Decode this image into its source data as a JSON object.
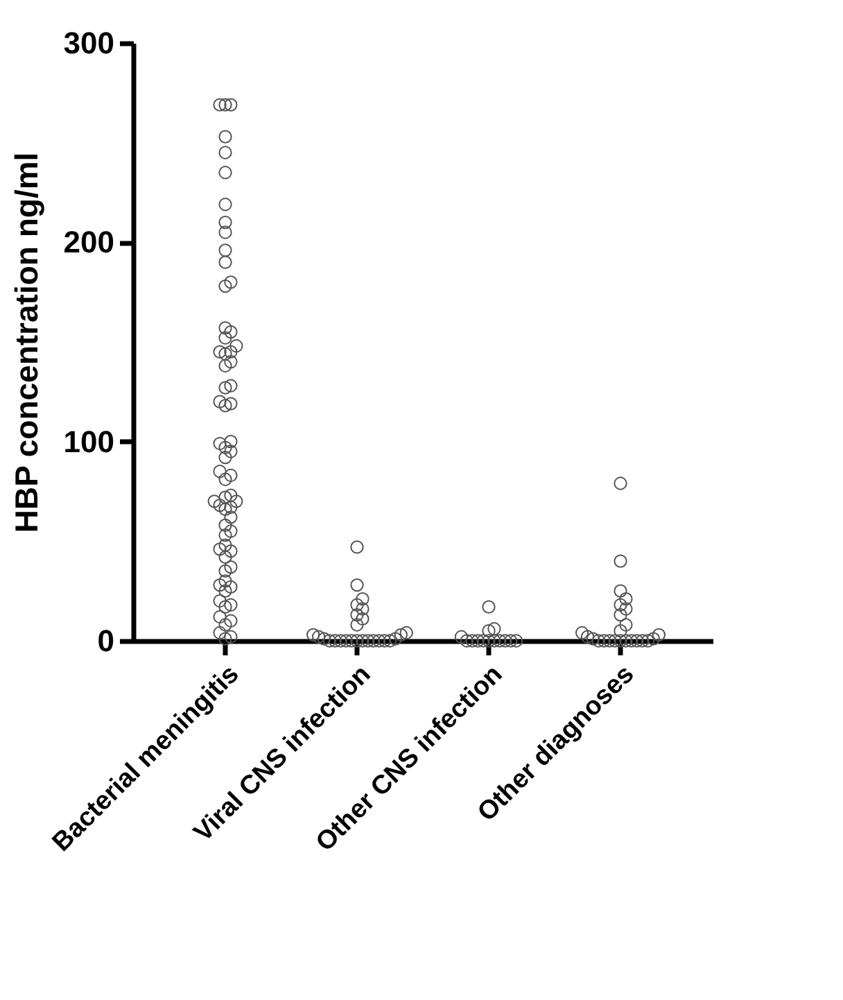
{
  "chart_data": {
    "type": "scatter",
    "ylabel": "HBP concentration ng/ml",
    "categories": [
      "Bacterial meningitis",
      "Viral CNS infection",
      "Other CNS infection",
      "Other diagnoses"
    ],
    "ylim": [
      0,
      300
    ],
    "yticks": [
      0,
      100,
      200,
      300
    ],
    "grid": false,
    "legend": false,
    "marker": "circle",
    "series": [
      {
        "color": "#555555",
        "x": [
          "Bacterial meningitis",
          "Bacterial meningitis",
          "Bacterial meningitis",
          "Bacterial meningitis",
          "Bacterial meningitis",
          "Bacterial meningitis",
          "Bacterial meningitis",
          "Bacterial meningitis",
          "Bacterial meningitis",
          "Bacterial meningitis",
          "Bacterial meningitis",
          "Bacterial meningitis",
          "Bacterial meningitis",
          "Bacterial meningitis",
          "Bacterial meningitis",
          "Bacterial meningitis",
          "Bacterial meningitis",
          "Bacterial meningitis",
          "Bacterial meningitis",
          "Bacterial meningitis",
          "Bacterial meningitis",
          "Bacterial meningitis",
          "Bacterial meningitis",
          "Bacterial meningitis",
          "Bacterial meningitis",
          "Bacterial meningitis",
          "Bacterial meningitis",
          "Bacterial meningitis",
          "Bacterial meningitis",
          "Bacterial meningitis",
          "Bacterial meningitis",
          "Bacterial meningitis",
          "Bacterial meningitis",
          "Bacterial meningitis",
          "Bacterial meningitis",
          "Bacterial meningitis",
          "Bacterial meningitis",
          "Bacterial meningitis",
          "Bacterial meningitis",
          "Bacterial meningitis",
          "Bacterial meningitis",
          "Bacterial meningitis",
          "Bacterial meningitis",
          "Bacterial meningitis",
          "Bacterial meningitis",
          "Bacterial meningitis",
          "Bacterial meningitis",
          "Bacterial meningitis",
          "Bacterial meningitis",
          "Bacterial meningitis",
          "Bacterial meningitis",
          "Bacterial meningitis",
          "Bacterial meningitis",
          "Bacterial meningitis",
          "Bacterial meningitis",
          "Bacterial meningitis",
          "Bacterial meningitis",
          "Bacterial meningitis",
          "Bacterial meningitis",
          "Bacterial meningitis",
          "Bacterial meningitis",
          "Bacterial meningitis",
          "Bacterial meningitis",
          "Bacterial meningitis",
          "Bacterial meningitis"
        ],
        "values": [
          269,
          269,
          269,
          253,
          245,
          235,
          219,
          210,
          205,
          196,
          190,
          180,
          178,
          157,
          155,
          152,
          148,
          145,
          145,
          144,
          140,
          138,
          128,
          127,
          120,
          119,
          118,
          100,
          99,
          97,
          95,
          92,
          85,
          83,
          81,
          73,
          72,
          70,
          70,
          68,
          67,
          66,
          62,
          58,
          55,
          53,
          48,
          46,
          45,
          42,
          37,
          35,
          30,
          28,
          27,
          25,
          20,
          18,
          17,
          12,
          10,
          8,
          4,
          2,
          1
        ]
      },
      {
        "color": "#555555",
        "x": [
          "Viral CNS infection",
          "Viral CNS infection",
          "Viral CNS infection",
          "Viral CNS infection",
          "Viral CNS infection",
          "Viral CNS infection",
          "Viral CNS infection",
          "Viral CNS infection",
          "Viral CNS infection",
          "Viral CNS infection",
          "Viral CNS infection",
          "Viral CNS infection",
          "Viral CNS infection",
          "Viral CNS infection",
          "Viral CNS infection",
          "Viral CNS infection",
          "Viral CNS infection",
          "Viral CNS infection",
          "Viral CNS infection",
          "Viral CNS infection",
          "Viral CNS infection",
          "Viral CNS infection",
          "Viral CNS infection",
          "Viral CNS infection",
          "Viral CNS infection",
          "Viral CNS infection"
        ],
        "values": [
          47,
          28,
          21,
          18,
          16,
          13,
          11,
          8,
          4,
          3,
          3,
          2,
          1,
          1,
          0,
          0,
          0,
          0,
          0,
          0,
          0,
          0,
          0,
          0,
          0,
          0
        ]
      },
      {
        "color": "#555555",
        "x": [
          "Other CNS infection",
          "Other CNS infection",
          "Other CNS infection",
          "Other CNS infection",
          "Other CNS infection",
          "Other CNS infection",
          "Other CNS infection",
          "Other CNS infection",
          "Other CNS infection",
          "Other CNS infection",
          "Other CNS infection",
          "Other CNS infection",
          "Other CNS infection",
          "Other CNS infection"
        ],
        "values": [
          17,
          6,
          5,
          2,
          0,
          0,
          0,
          0,
          0,
          0,
          0,
          0,
          0,
          0
        ]
      },
      {
        "color": "#555555",
        "x": [
          "Other diagnoses",
          "Other diagnoses",
          "Other diagnoses",
          "Other diagnoses",
          "Other diagnoses",
          "Other diagnoses",
          "Other diagnoses",
          "Other diagnoses",
          "Other diagnoses",
          "Other diagnoses",
          "Other diagnoses",
          "Other diagnoses",
          "Other diagnoses",
          "Other diagnoses",
          "Other diagnoses",
          "Other diagnoses",
          "Other diagnoses",
          "Other diagnoses",
          "Other diagnoses",
          "Other diagnoses",
          "Other diagnoses",
          "Other diagnoses",
          "Other diagnoses",
          "Other diagnoses"
        ],
        "values": [
          79,
          40,
          25,
          21,
          18,
          16,
          13,
          8,
          5,
          4,
          3,
          2,
          1,
          1,
          0,
          0,
          0,
          0,
          0,
          0,
          0,
          0,
          0,
          0
        ]
      }
    ]
  }
}
